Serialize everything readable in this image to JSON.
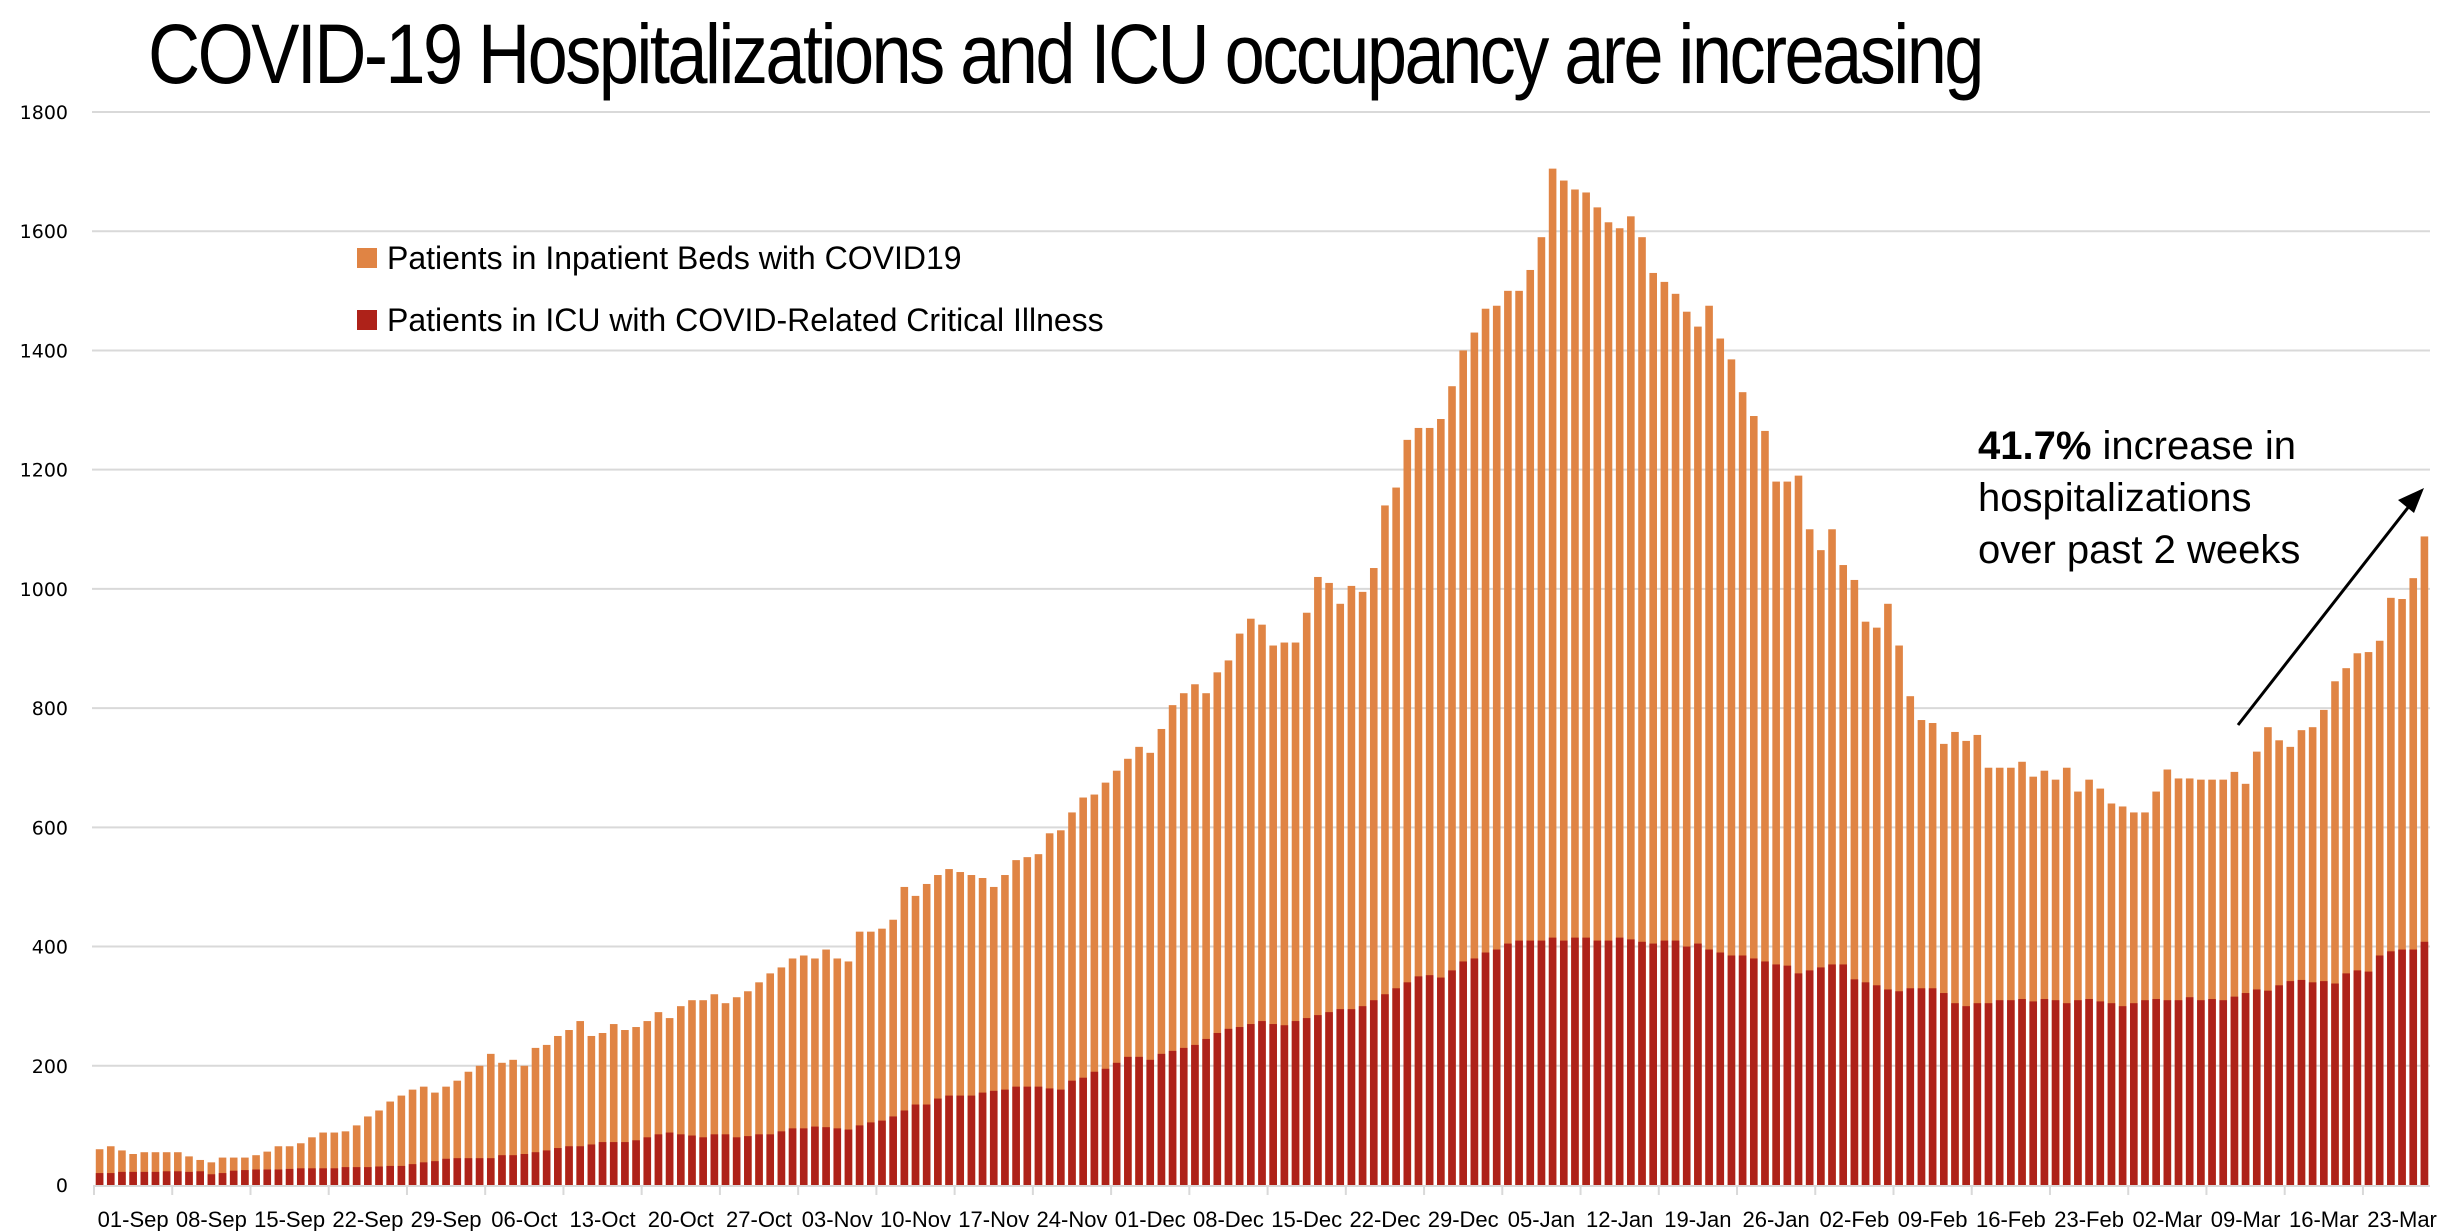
{
  "chart_data": {
    "type": "bar",
    "stacked": "overlay",
    "title": "COVID-19 Hospitalizations and ICU occupancy are increasing",
    "xlabel": "",
    "ylabel": "",
    "ylim": [
      0,
      1800
    ],
    "yticks": [
      0,
      200,
      400,
      600,
      800,
      1000,
      1200,
      1400,
      1600,
      1800
    ],
    "grid": true,
    "legend_position": "top-left",
    "x_start": "01-Sep",
    "x_end": "28-Mar",
    "xtick_labels": [
      "01-Sep",
      "08-Sep",
      "15-Sep",
      "22-Sep",
      "29-Sep",
      "06-Oct",
      "13-Oct",
      "20-Oct",
      "27-Oct",
      "03-Nov",
      "10-Nov",
      "17-Nov",
      "24-Nov",
      "01-Dec",
      "08-Dec",
      "15-Dec",
      "22-Dec",
      "29-Dec",
      "05-Jan",
      "12-Jan",
      "19-Jan",
      "26-Jan",
      "02-Feb",
      "09-Feb",
      "16-Feb",
      "23-Feb",
      "02-Mar",
      "09-Mar",
      "16-Mar",
      "23-Mar"
    ],
    "xtick_interval_days": 7,
    "series": [
      {
        "name": "Patients in Inpatient Beds with COVID19",
        "color": "#E08444",
        "values": [
          60,
          65,
          58,
          52,
          55,
          55,
          55,
          55,
          48,
          42,
          38,
          46,
          46,
          46,
          50,
          56,
          65,
          65,
          70,
          80,
          88,
          88,
          90,
          100,
          115,
          125,
          140,
          150,
          160,
          165,
          155,
          165,
          175,
          190,
          200,
          220,
          205,
          210,
          200,
          230,
          235,
          250,
          260,
          275,
          250,
          255,
          270,
          260,
          265,
          275,
          290,
          280,
          300,
          310,
          310,
          320,
          305,
          315,
          325,
          340,
          355,
          365,
          380,
          385,
          380,
          395,
          380,
          375,
          425,
          425,
          430,
          445,
          500,
          485,
          505,
          520,
          530,
          525,
          520,
          515,
          500,
          520,
          545,
          550,
          555,
          590,
          595,
          625,
          650,
          655,
          675,
          695,
          715,
          735,
          725,
          765,
          805,
          825,
          840,
          825,
          860,
          880,
          925,
          950,
          940,
          905,
          910,
          910,
          960,
          1020,
          1010,
          975,
          1005,
          995,
          1035,
          1140,
          1170,
          1250,
          1270,
          1270,
          1285,
          1340,
          1400,
          1430,
          1470,
          1475,
          1500,
          1500,
          1535,
          1590,
          1705,
          1685,
          1670,
          1665,
          1640,
          1615,
          1605,
          1625,
          1590,
          1530,
          1515,
          1495,
          1465,
          1440,
          1475,
          1420,
          1385,
          1330,
          1290,
          1265,
          1180,
          1180,
          1190,
          1100,
          1065,
          1100,
          1040,
          1015,
          945,
          935,
          975,
          905,
          820,
          780,
          775,
          740,
          760,
          745,
          755,
          700,
          700,
          700,
          710,
          685,
          695,
          680,
          700,
          660,
          680,
          665,
          640,
          635,
          625,
          625,
          660,
          697,
          682,
          682,
          680,
          680,
          680,
          693,
          673,
          727,
          768,
          746,
          735,
          763,
          768,
          797,
          845,
          867,
          892,
          894,
          913,
          985,
          983,
          1018,
          1088
        ]
      },
      {
        "name": "Patients in ICU with COVID-Related Critical Illness",
        "color": "#AE2219",
        "values": [
          20,
          20,
          22,
          22,
          22,
          22,
          23,
          23,
          22,
          23,
          18,
          20,
          24,
          25,
          26,
          26,
          26,
          27,
          28,
          28,
          28,
          28,
          30,
          30,
          30,
          31,
          32,
          32,
          35,
          38,
          40,
          44,
          45,
          45,
          45,
          45,
          50,
          50,
          52,
          55,
          58,
          62,
          65,
          65,
          68,
          72,
          72,
          72,
          75,
          80,
          85,
          88,
          85,
          83,
          80,
          85,
          85,
          80,
          82,
          85,
          85,
          90,
          95,
          95,
          98,
          97,
          95,
          93,
          100,
          105,
          108,
          115,
          125,
          135,
          135,
          145,
          150,
          150,
          150,
          155,
          158,
          160,
          165,
          165,
          165,
          162,
          160,
          175,
          180,
          190,
          195,
          205,
          215,
          215,
          210,
          220,
          225,
          230,
          235,
          245,
          255,
          262,
          265,
          270,
          275,
          270,
          268,
          275,
          280,
          285,
          290,
          295,
          295,
          300,
          310,
          320,
          330,
          340,
          350,
          352,
          348,
          360,
          375,
          380,
          390,
          395,
          405,
          410,
          410,
          410,
          415,
          410,
          415,
          415,
          410,
          410,
          415,
          412,
          408,
          405,
          410,
          410,
          400,
          405,
          395,
          390,
          385,
          385,
          380,
          375,
          370,
          368,
          355,
          360,
          365,
          370,
          370,
          345,
          340,
          335,
          328,
          325,
          330,
          330,
          330,
          322,
          305,
          300,
          305,
          305,
          310,
          310,
          312,
          308,
          312,
          310,
          305,
          310,
          312,
          308,
          305,
          300,
          305,
          310,
          312,
          310,
          310,
          315,
          310,
          312,
          310,
          316,
          322,
          328,
          326,
          335,
          342,
          344,
          340,
          342,
          338,
          355,
          360,
          358,
          385,
          392,
          395,
          395,
          408
        ]
      }
    ],
    "annotations": [
      {
        "text_bold": "41.7%",
        "text": " increase in hospitalizations over past 2 weeks",
        "arrow": true
      }
    ]
  },
  "title": "COVID-19 Hospitalizations and ICU occupancy are increasing",
  "legend": [
    {
      "label": "Patients in Inpatient Beds with COVID19",
      "color": "#E08444"
    },
    {
      "label": "Patients in ICU with COVID-Related Critical Illness",
      "color": "#AE2219"
    }
  ],
  "annotation": {
    "bold": "41.7%",
    "line1_rest": " increase in",
    "line2": "hospitalizations",
    "line3": "over past 2 weeks"
  },
  "colors": {
    "gridline": "#D9D9D9",
    "axis": "#D9D9D9",
    "inpatient": "#E08444",
    "icu": "#AE2219"
  }
}
